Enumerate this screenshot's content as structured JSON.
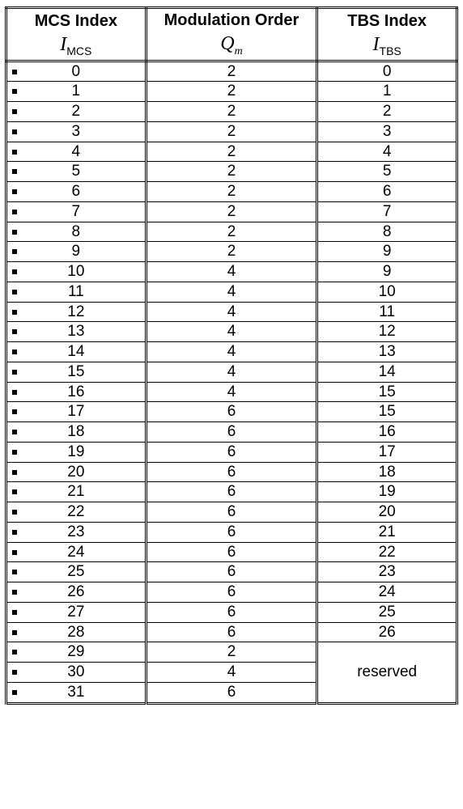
{
  "table": {
    "type": "table",
    "background_color": "#ffffff",
    "border_color": "#000000",
    "font_family": "Arial",
    "header_fontsize": 20,
    "cell_fontsize": 19,
    "columns": [
      {
        "title": "MCS Index",
        "symbol_base": "I",
        "symbol_sub": "MCS",
        "sub_italic": false,
        "width_pct": 31,
        "align": "center"
      },
      {
        "title": "Modulation Order",
        "symbol_base": "Q",
        "symbol_sub": "m",
        "sub_italic": true,
        "width_pct": 38,
        "align": "center"
      },
      {
        "title": "TBS Index",
        "symbol_base": "I",
        "symbol_sub": "TBS",
        "sub_italic": false,
        "width_pct": 31,
        "align": "center"
      }
    ],
    "bullet_marker_color": "#000000",
    "reserved_label": "reserved",
    "rows": [
      {
        "mcs": "0",
        "qm": "2",
        "tbs": "0"
      },
      {
        "mcs": "1",
        "qm": "2",
        "tbs": "1"
      },
      {
        "mcs": "2",
        "qm": "2",
        "tbs": "2"
      },
      {
        "mcs": "3",
        "qm": "2",
        "tbs": "3"
      },
      {
        "mcs": "4",
        "qm": "2",
        "tbs": "4"
      },
      {
        "mcs": "5",
        "qm": "2",
        "tbs": "5"
      },
      {
        "mcs": "6",
        "qm": "2",
        "tbs": "6"
      },
      {
        "mcs": "7",
        "qm": "2",
        "tbs": "7"
      },
      {
        "mcs": "8",
        "qm": "2",
        "tbs": "8"
      },
      {
        "mcs": "9",
        "qm": "2",
        "tbs": "9"
      },
      {
        "mcs": "10",
        "qm": "4",
        "tbs": "9"
      },
      {
        "mcs": "11",
        "qm": "4",
        "tbs": "10"
      },
      {
        "mcs": "12",
        "qm": "4",
        "tbs": "11"
      },
      {
        "mcs": "13",
        "qm": "4",
        "tbs": "12"
      },
      {
        "mcs": "14",
        "qm": "4",
        "tbs": "13"
      },
      {
        "mcs": "15",
        "qm": "4",
        "tbs": "14"
      },
      {
        "mcs": "16",
        "qm": "4",
        "tbs": "15"
      },
      {
        "mcs": "17",
        "qm": "6",
        "tbs": "15"
      },
      {
        "mcs": "18",
        "qm": "6",
        "tbs": "16"
      },
      {
        "mcs": "19",
        "qm": "6",
        "tbs": "17"
      },
      {
        "mcs": "20",
        "qm": "6",
        "tbs": "18"
      },
      {
        "mcs": "21",
        "qm": "6",
        "tbs": "19"
      },
      {
        "mcs": "22",
        "qm": "6",
        "tbs": "20"
      },
      {
        "mcs": "23",
        "qm": "6",
        "tbs": "21"
      },
      {
        "mcs": "24",
        "qm": "6",
        "tbs": "22"
      },
      {
        "mcs": "25",
        "qm": "6",
        "tbs": "23"
      },
      {
        "mcs": "26",
        "qm": "6",
        "tbs": "24"
      },
      {
        "mcs": "27",
        "qm": "6",
        "tbs": "25"
      },
      {
        "mcs": "28",
        "qm": "6",
        "tbs": "26"
      },
      {
        "mcs": "29",
        "qm": "2",
        "tbs": null
      },
      {
        "mcs": "30",
        "qm": "4",
        "tbs": null
      },
      {
        "mcs": "31",
        "qm": "6",
        "tbs": null
      }
    ]
  }
}
